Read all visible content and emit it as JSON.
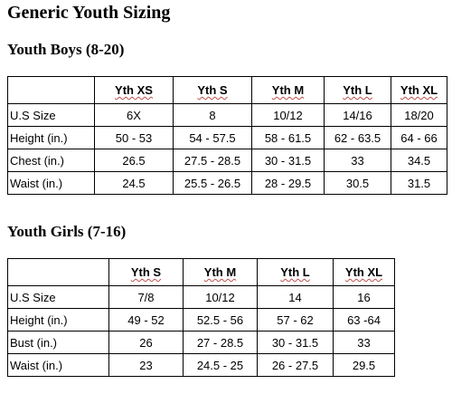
{
  "page_title": "Generic Youth Sizing",
  "boys": {
    "title": "Youth Boys (8-20)",
    "headers": [
      "",
      "Yth XS",
      "Yth S",
      "Yth M",
      "Yth L",
      "Yth XL"
    ],
    "rows": [
      [
        "U.S Size",
        "6X",
        "8",
        "10/12",
        "14/16",
        "18/20"
      ],
      [
        "Height (in.)",
        "50 - 53",
        "54 - 57.5",
        "58 - 61.5",
        "62 - 63.5",
        "64 - 66"
      ],
      [
        "Chest (in.)",
        "26.5",
        "27.5 - 28.5",
        "30 - 31.5",
        "33",
        "34.5"
      ],
      [
        "Waist (in.)",
        "24.5",
        "25.5 - 26.5",
        "28 - 29.5",
        "30.5",
        "31.5"
      ]
    ]
  },
  "girls": {
    "title": "Youth Girls (7-16)",
    "headers": [
      "",
      "Yth S",
      "Yth M",
      "Yth L",
      "Yth XL"
    ],
    "rows": [
      [
        "U.S Size",
        "7/8",
        "10/12",
        "14",
        "16"
      ],
      [
        "Height (in.)",
        "49 - 52",
        "52.5 - 56",
        "57 - 62",
        "63 -64"
      ],
      [
        "Bust (in.)",
        "26",
        "27 - 28.5",
        "30 - 31.5",
        "33"
      ],
      [
        "Waist (in.)",
        "23",
        "24.5 - 25",
        "26 - 27.5",
        "29.5"
      ]
    ]
  }
}
